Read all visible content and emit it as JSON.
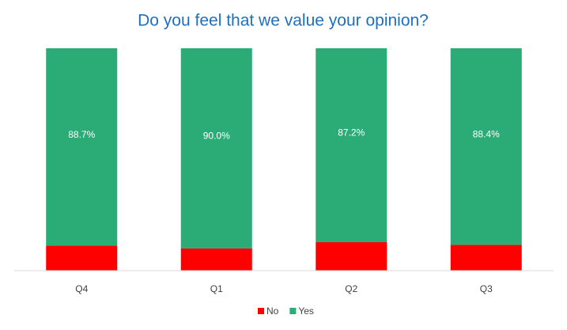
{
  "chart_data": {
    "type": "stacked_bar",
    "title": "Do you feel that we value your opinion?",
    "categories": [
      "Q4",
      "Q1",
      "Q2",
      "Q3"
    ],
    "series": [
      {
        "name": "No",
        "color": "#ff0000",
        "values": [
          11.3,
          10.0,
          12.8,
          11.6
        ]
      },
      {
        "name": "Yes",
        "color": "#2bac76",
        "values": [
          88.7,
          90.0,
          87.2,
          88.4
        ],
        "value_labels": [
          "88.7%",
          "90.0%",
          "87.2%",
          "88.4%"
        ]
      }
    ],
    "ylim": [
      0,
      100
    ]
  }
}
